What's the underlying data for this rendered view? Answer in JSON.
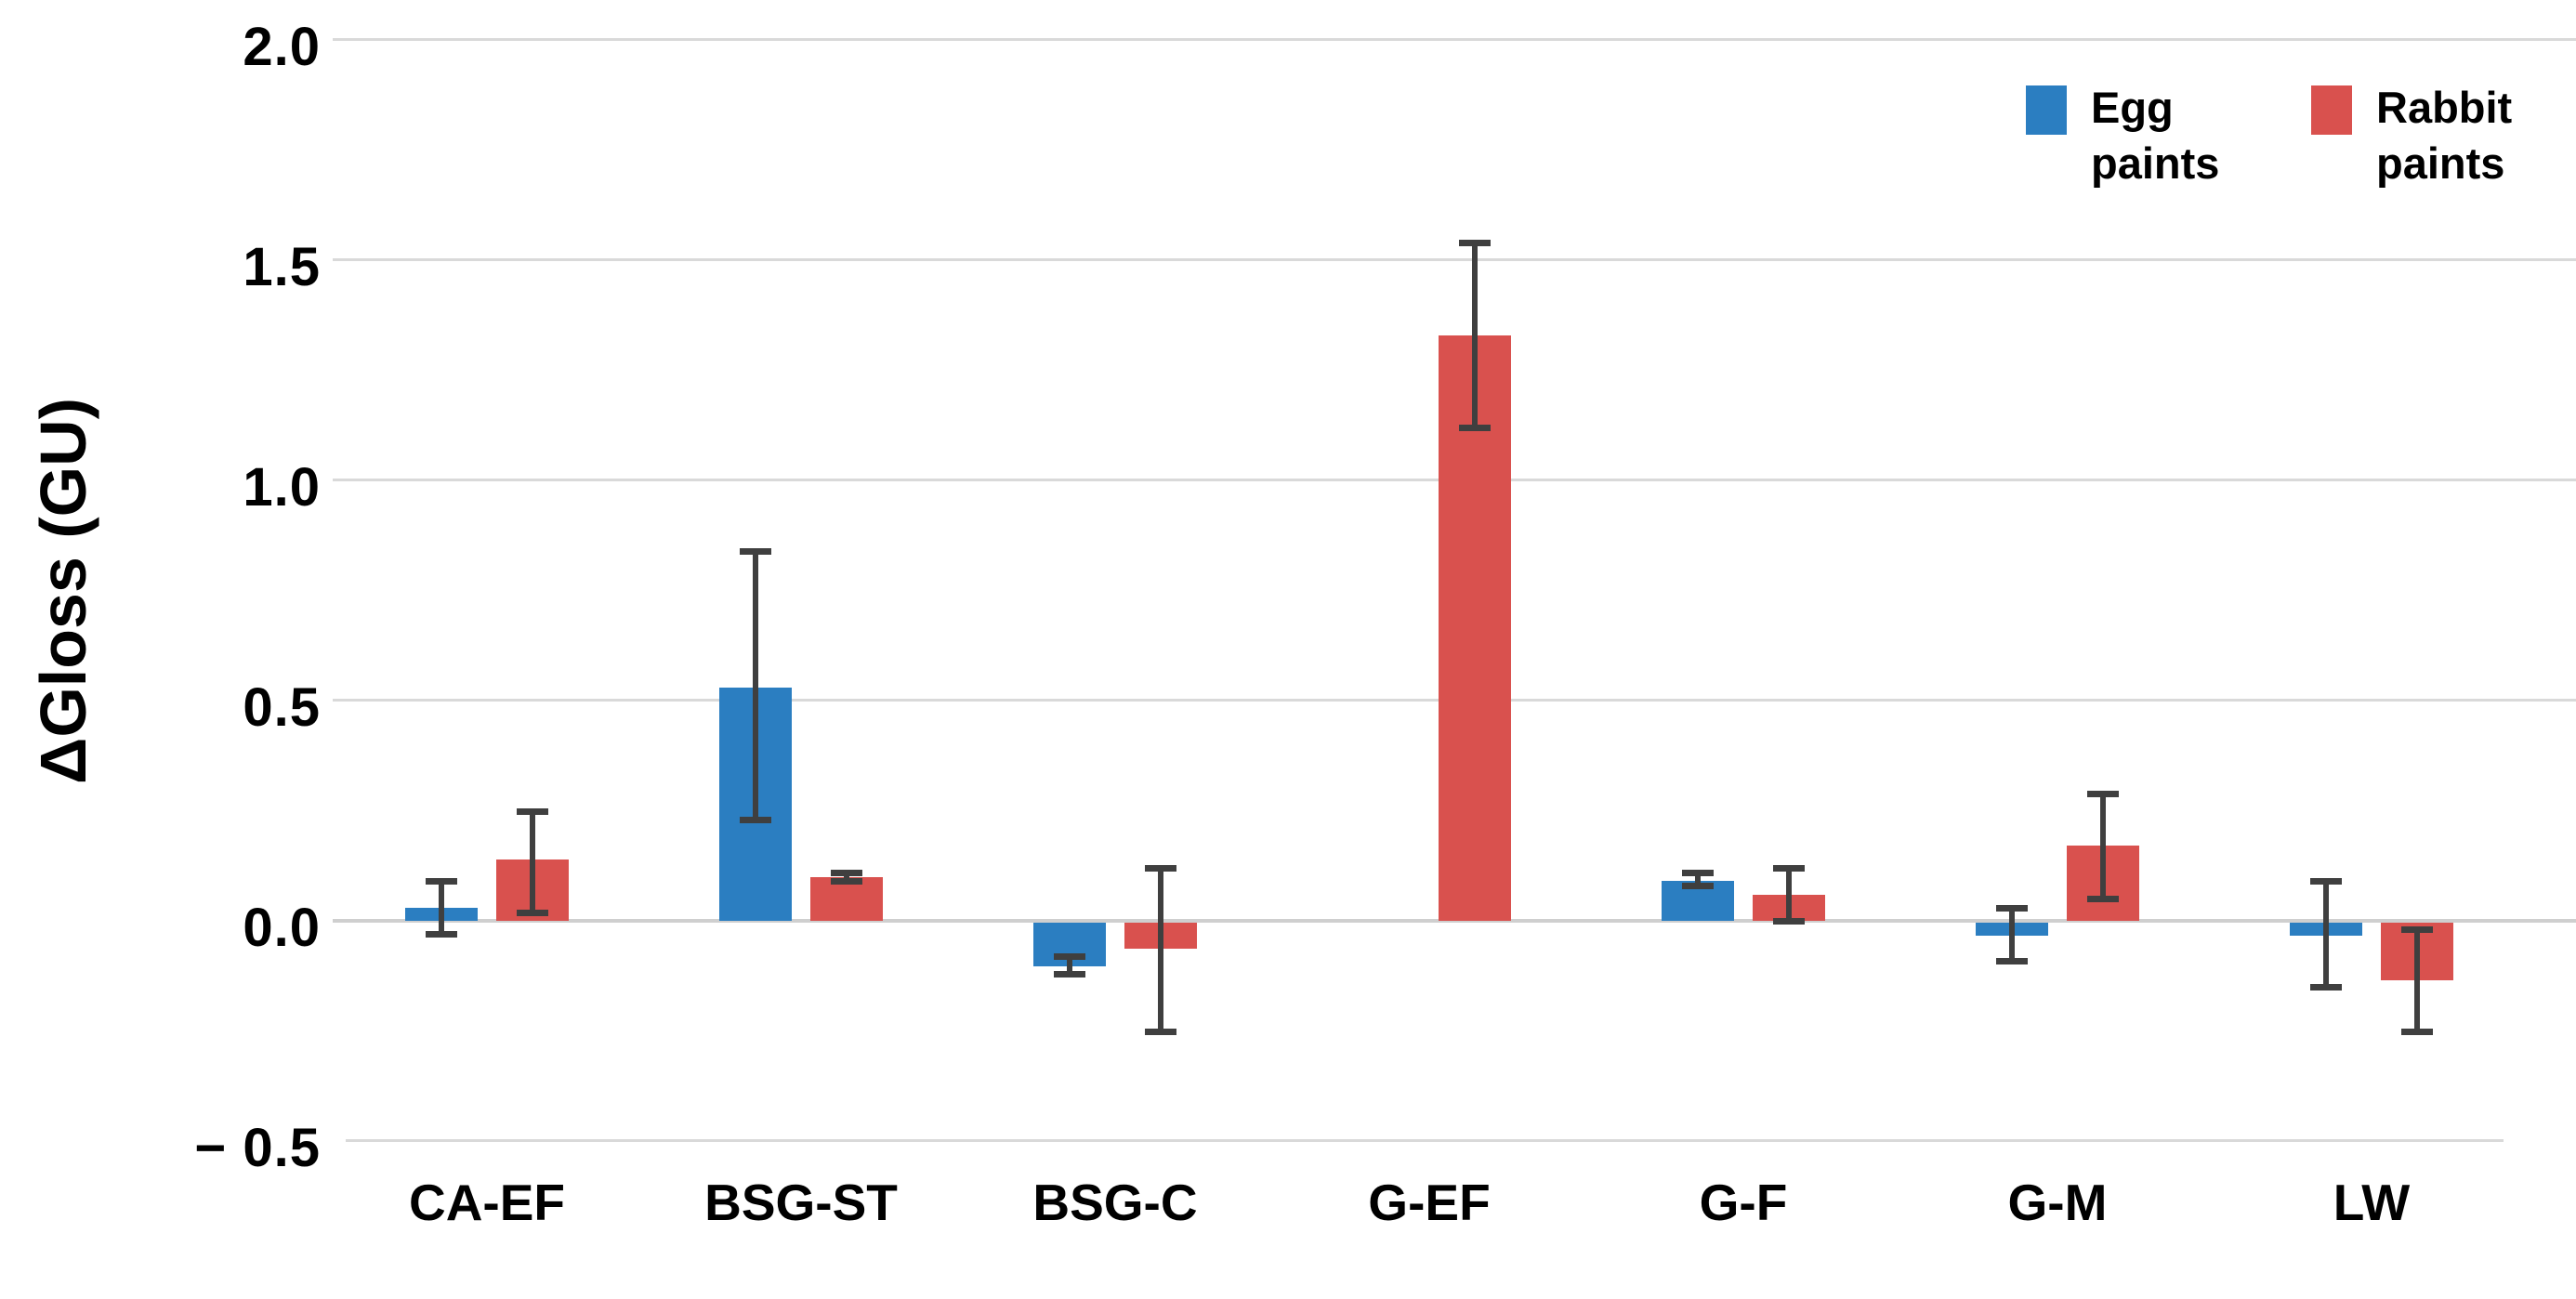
{
  "chart_data": {
    "type": "bar",
    "title": "",
    "xlabel": "",
    "ylabel": "ΔGloss (GU)",
    "categories": [
      "CA-EF",
      "BSG-ST",
      "BSG-C",
      "G-EF",
      "G-F",
      "G-M",
      "LW"
    ],
    "series": [
      {
        "name": "Egg paints",
        "color": "#2B7EC1",
        "values": [
          0.03,
          0.53,
          -0.1,
          null,
          0.09,
          -0.03,
          -0.03
        ],
        "error_low": [
          -0.03,
          0.23,
          -0.12,
          null,
          0.08,
          -0.09,
          -0.15
        ],
        "error_high": [
          0.09,
          0.84,
          -0.08,
          null,
          0.11,
          0.03,
          0.09
        ]
      },
      {
        "name": "Rabbit paints",
        "color": "#D9514E",
        "values": [
          0.14,
          0.1,
          -0.06,
          1.33,
          0.06,
          0.17,
          -0.13
        ],
        "error_low": [
          0.02,
          0.09,
          -0.25,
          1.12,
          0.0,
          0.05,
          -0.25
        ],
        "error_high": [
          0.25,
          0.11,
          0.12,
          1.54,
          0.12,
          0.29,
          -0.02
        ]
      }
    ],
    "y_ticks": [
      {
        "label": "2.0",
        "value": 2.0
      },
      {
        "label": "1.5",
        "value": 1.5
      },
      {
        "label": "1.0",
        "value": 1.0
      },
      {
        "label": "0.5",
        "value": 0.5
      },
      {
        "label": "0.0",
        "value": 0.0
      },
      {
        "label": "− 0.5",
        "value": -0.5
      }
    ],
    "ylim": [
      -0.5,
      2.0
    ],
    "grid": true,
    "gridline_color": "#D9D9D9",
    "zero_line_color": "#CFCFCF",
    "error_bar_color": "#3F3F3F",
    "legend_position": "top-right"
  }
}
